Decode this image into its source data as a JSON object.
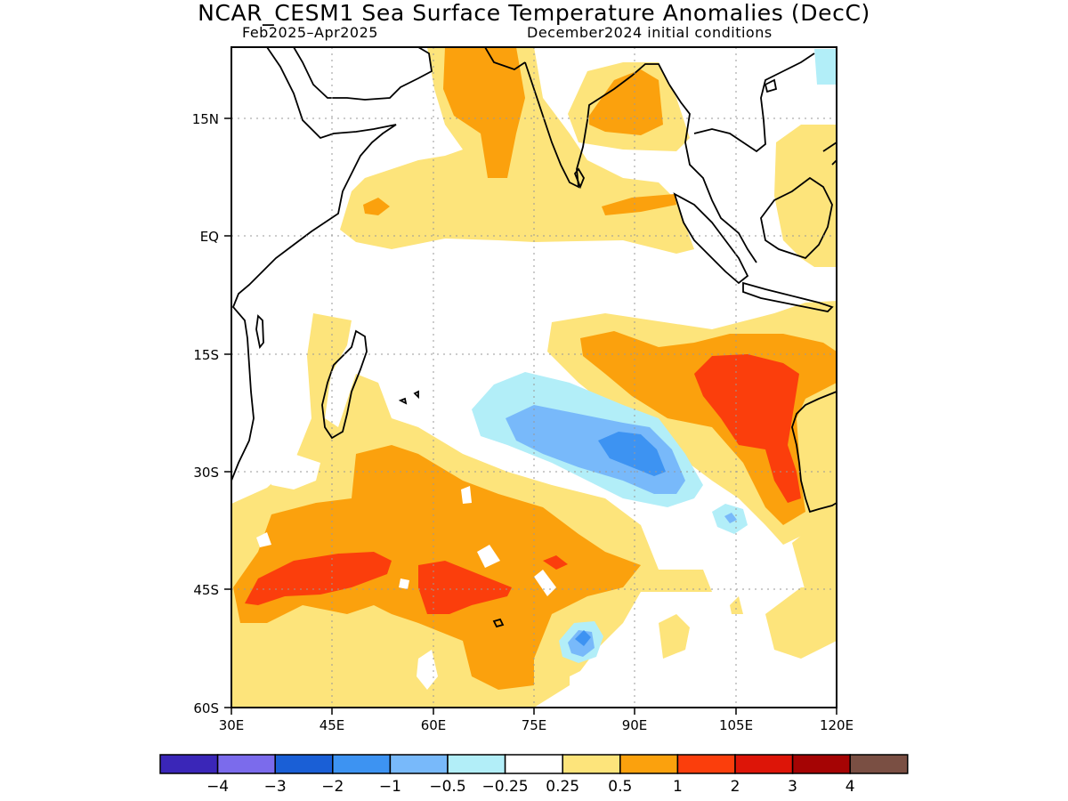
{
  "header": {
    "title": "NCAR_CESM1 Sea Surface Temperature Anomalies (DecC)",
    "period": "Feb2025–Apr2025",
    "init": "December2024 initial conditions"
  },
  "axes": {
    "lon_labels": [
      "30E",
      "45E",
      "60E",
      "75E",
      "90E",
      "105E",
      "120E"
    ],
    "lat_labels": [
      "15N",
      "EQ",
      "15S",
      "30S",
      "45S",
      "60S"
    ]
  },
  "colorbar": {
    "colors": [
      "#3a26b8",
      "#7b6bec",
      "#1a5fd6",
      "#3d93f2",
      "#78b9fa",
      "#b2eef8",
      "#ffffff",
      "#fde47b",
      "#fba10d",
      "#fb3e0c",
      "#dd1508",
      "#a50404",
      "#7a4f43"
    ],
    "labels": [
      "−4",
      "−3",
      "−2",
      "−1",
      "−0.5",
      "−0.25",
      "0.25",
      "0.5",
      "1",
      "2",
      "3",
      "4"
    ]
  },
  "legend_colors": {
    "neg_025": "#b2eef8",
    "neg_05": "#78b9fa",
    "neg_1": "#3d93f2",
    "pos_025": "#fde47b",
    "pos_05": "#fba10d",
    "pos_1": "#fb3e0c"
  }
}
